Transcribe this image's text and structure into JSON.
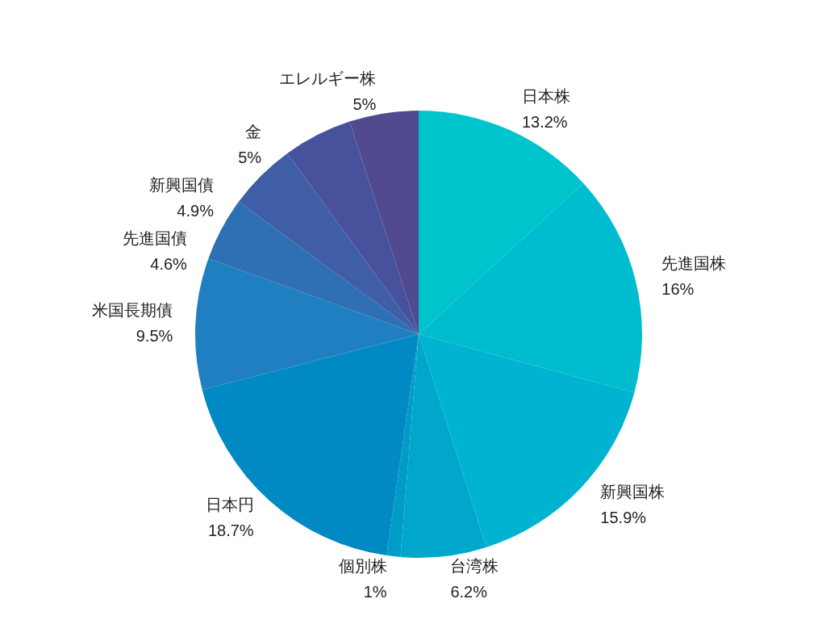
{
  "chart_data": {
    "type": "pie",
    "categories": [
      "日本株",
      "先進国株",
      "新興国株",
      "台湾株",
      "個別株",
      "日本円",
      "米国長期債",
      "先進国債",
      "新興国債",
      "金",
      "エレルギー株"
    ],
    "values": [
      13.2,
      16,
      15.9,
      6.2,
      1,
      18.7,
      9.5,
      4.6,
      4.9,
      5,
      5
    ],
    "value_labels": [
      "13.2%",
      "16%",
      "15.9%",
      "6.2%",
      "1%",
      "18.7%",
      "9.5%",
      "4.6%",
      "4.9%",
      "5%",
      "5%"
    ],
    "colors": [
      "#00c4cc",
      "#00bccf",
      "#00b3d0",
      "#00a6cc",
      "#009cc8",
      "#0089c2",
      "#1f7fc0",
      "#2f6fb4",
      "#3f5ea6",
      "#48529c",
      "#514a8f"
    ],
    "legend": false
  }
}
